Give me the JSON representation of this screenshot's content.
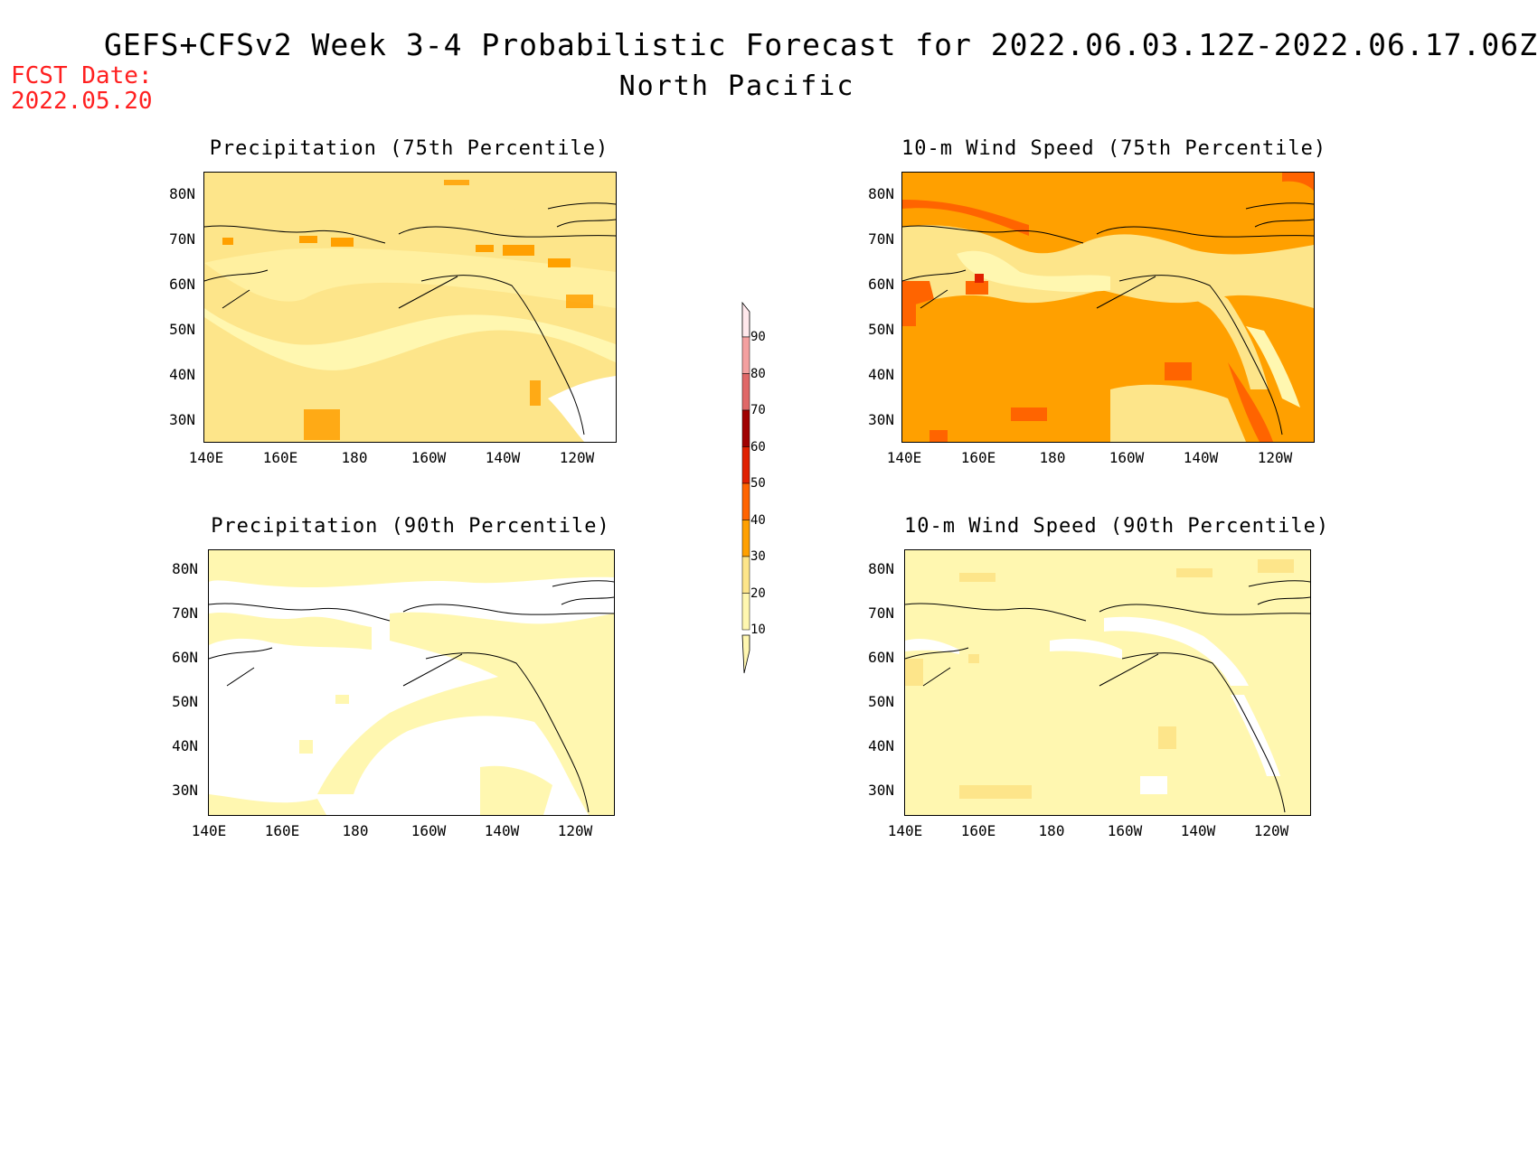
{
  "header": {
    "title": "GEFS+CFSv2 Week 3-4 Probabilistic Forecast for 2022.06.03.12Z-2022.06.17.06Z",
    "region": "North Pacific",
    "fcst_label": "FCST Date:",
    "fcst_date": "2022.05.20"
  },
  "panels": [
    {
      "title": "Precipitation (75th Percentile)",
      "base_color": "#fde58a"
    },
    {
      "title": "10-m Wind Speed (75th Percentile)",
      "base_color": "#ffa000"
    },
    {
      "title": "Precipitation (90th Percentile)",
      "base_color": "#fff7b0"
    },
    {
      "title": "10-m Wind Speed (90th Percentile)",
      "base_color": "#fff7b0"
    }
  ],
  "axes": {
    "lat_labels": [
      "80N",
      "70N",
      "60N",
      "50N",
      "40N",
      "30N"
    ],
    "lon_labels": [
      "140E",
      "160E",
      "180",
      "160W",
      "140W",
      "120W"
    ]
  },
  "colorbar": {
    "labels": [
      "90",
      "80",
      "70",
      "60",
      "50",
      "40",
      "30",
      "20",
      "10"
    ],
    "colors": [
      "#ffe0e0",
      "#f4a0a0",
      "#e06868",
      "#a00000",
      "#e02000",
      "#ff6400",
      "#ffa000",
      "#fde58a",
      "#fff7b0"
    ]
  }
}
